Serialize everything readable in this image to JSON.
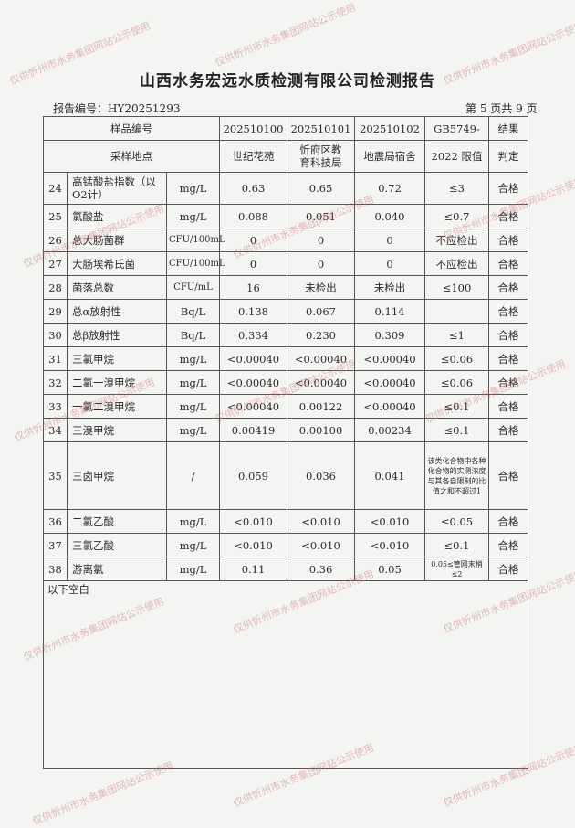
{
  "title": "山西水务宏远水质检测有限公司检测报告",
  "report_no": "报告编号：HY20251293",
  "page_no": "第 5 页共 9 页",
  "header": {
    "sample_no_label": "样品编号",
    "site_label": "采样地点",
    "samples": [
      {
        "no": "202510100",
        "site": "世纪花苑"
      },
      {
        "no": "202510101",
        "site": "忻府区教育科技局"
      },
      {
        "no": "202510102",
        "site": "地震局宿舍"
      }
    ],
    "limit_label_1": "GB5749-",
    "limit_label_2": "2022 限值",
    "result_label_1": "结果",
    "result_label_2": "判定"
  },
  "rows": [
    {
      "n": "24",
      "item": "高锰酸盐指数（以O2计）",
      "unit": "mg/L",
      "v": [
        "0.63",
        "0.65",
        "0.72"
      ],
      "limit": "≤3",
      "result": "合格"
    },
    {
      "n": "25",
      "item": "氯酸盐",
      "unit": "mg/L",
      "v": [
        "0.088",
        "0.051",
        "0.040"
      ],
      "limit": "≤0.7",
      "result": "合格"
    },
    {
      "n": "26",
      "item": "总大肠菌群",
      "unit": "CFU/100mL",
      "v": [
        "0",
        "0",
        "0"
      ],
      "limit": "不应检出",
      "result": "合格"
    },
    {
      "n": "27",
      "item": "大肠埃希氏菌",
      "unit": "CFU/100mL",
      "v": [
        "0",
        "0",
        "0"
      ],
      "limit": "不应检出",
      "result": "合格"
    },
    {
      "n": "28",
      "item": "菌落总数",
      "unit": "CFU/mL",
      "v": [
        "16",
        "未检出",
        "未检出"
      ],
      "limit": "≤100",
      "result": "合格"
    },
    {
      "n": "29",
      "item": "总α放射性",
      "unit": "Bq/L",
      "v": [
        "0.138",
        "0.067",
        "0.114"
      ],
      "limit": "",
      "result": "合格"
    },
    {
      "n": "30",
      "item": "总β放射性",
      "unit": "Bq/L",
      "v": [
        "0.334",
        "0.230",
        "0.309"
      ],
      "limit": "≤1",
      "result": "合格"
    },
    {
      "n": "31",
      "item": "三氯甲烷",
      "unit": "mg/L",
      "v": [
        "<0.00040",
        "<0.00040",
        "<0.00040"
      ],
      "limit": "≤0.06",
      "result": "合格"
    },
    {
      "n": "32",
      "item": "二氯一溴甲烷",
      "unit": "mg/L",
      "v": [
        "<0.00040",
        "<0.00040",
        "<0.00040"
      ],
      "limit": "≤0.06",
      "result": "合格"
    },
    {
      "n": "33",
      "item": "一氯二溴甲烷",
      "unit": "mg/L",
      "v": [
        "<0.00040",
        "0.00122",
        "<0.00040"
      ],
      "limit": "≤0.1",
      "result": "合格"
    },
    {
      "n": "34",
      "item": "三溴甲烷",
      "unit": "mg/L",
      "v": [
        "0.00419",
        "0.00100",
        "0.00234"
      ],
      "limit": "≤0.1",
      "result": "合格"
    },
    {
      "n": "35",
      "item": "三卤甲烷",
      "unit": "/",
      "v": [
        "0.059",
        "0.036",
        "0.041"
      ],
      "limit": "该类化合物中各种化合物的实测浓度与其各自限制的比值之和不超过1",
      "result": "合格"
    },
    {
      "n": "36",
      "item": "二氯乙酸",
      "unit": "mg/L",
      "v": [
        "<0.010",
        "<0.010",
        "<0.010"
      ],
      "limit": "≤0.05",
      "result": "合格"
    },
    {
      "n": "37",
      "item": "三氯乙酸",
      "unit": "mg/L",
      "v": [
        "<0.010",
        "<0.010",
        "<0.010"
      ],
      "limit": "≤0.1",
      "result": "合格"
    },
    {
      "n": "38",
      "item": "游离氯",
      "unit": "mg/L",
      "v": [
        "0.11",
        "0.36",
        "0.05"
      ],
      "limit": "0.05≤管网末梢≤2",
      "result": "合格"
    }
  ],
  "footer_note": "以下空白",
  "watermark": "仅供忻州市水务集团网站公示使用"
}
